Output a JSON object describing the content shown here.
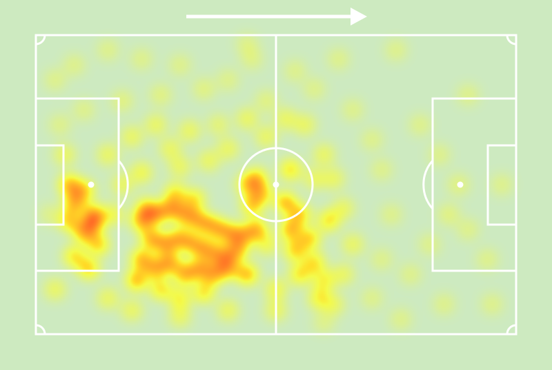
{
  "chart_data": {
    "type": "heatmap",
    "title": "",
    "xlabel": "",
    "ylabel": "",
    "xlim": [
      0,
      100
    ],
    "ylim": [
      0,
      100
    ],
    "grid": false,
    "attack_direction": "left-to-right",
    "colors": {
      "background": "#cdeac0",
      "lines": "#ffffff",
      "low": "#ffff30",
      "high": "#ff2020"
    },
    "points": [
      [
        22,
        62,
        1
      ],
      [
        25,
        60,
        1
      ],
      [
        28,
        58,
        1
      ],
      [
        31,
        60,
        1
      ],
      [
        34,
        62,
        1
      ],
      [
        37,
        64,
        1
      ],
      [
        40,
        66,
        1
      ],
      [
        43,
        67,
        1
      ],
      [
        46,
        65,
        1
      ],
      [
        24,
        68,
        1
      ],
      [
        27,
        70,
        1
      ],
      [
        30,
        68,
        1
      ],
      [
        33,
        70,
        1
      ],
      [
        36,
        72,
        1
      ],
      [
        39,
        74,
        1
      ],
      [
        42,
        72,
        1
      ],
      [
        22,
        75,
        1
      ],
      [
        25,
        78,
        1
      ],
      [
        28,
        76,
        1
      ],
      [
        31,
        80,
        1
      ],
      [
        34,
        78,
        1
      ],
      [
        37,
        80,
        1
      ],
      [
        40,
        78,
        1
      ],
      [
        44,
        80,
        1
      ],
      [
        21,
        82,
        1
      ],
      [
        26,
        85,
        0.8
      ],
      [
        30,
        88,
        0.7
      ],
      [
        35,
        86,
        0.8
      ],
      [
        23,
        58,
        0.9
      ],
      [
        29,
        53,
        0.8
      ],
      [
        33,
        55,
        0.8
      ],
      [
        45,
        57,
        0.9
      ],
      [
        47,
        53,
        0.9
      ],
      [
        7,
        50,
        1
      ],
      [
        10,
        52,
        0.9
      ],
      [
        8,
        56,
        1
      ],
      [
        12,
        60,
        1
      ],
      [
        7,
        62,
        0.9
      ],
      [
        10,
        66,
        1
      ],
      [
        13,
        70,
        0.9
      ],
      [
        8,
        74,
        0.8
      ],
      [
        11,
        78,
        0.9
      ],
      [
        12,
        63,
        1
      ],
      [
        52,
        56,
        1
      ],
      [
        55,
        60,
        0.9
      ],
      [
        53,
        65,
        1
      ],
      [
        57,
        68,
        0.9
      ],
      [
        54,
        72,
        0.9
      ],
      [
        58,
        76,
        0.8
      ],
      [
        55,
        80,
        0.8
      ],
      [
        60,
        82,
        0.7
      ],
      [
        61,
        62,
        0.8
      ],
      [
        59,
        88,
        0.7
      ],
      [
        46,
        48,
        0.9
      ],
      [
        44,
        50,
        0.8
      ],
      [
        53,
        45,
        0.8
      ],
      [
        30,
        44,
        0.5
      ],
      [
        36,
        42,
        0.5
      ],
      [
        40,
        38,
        0.5
      ],
      [
        28,
        38,
        0.5
      ],
      [
        22,
        46,
        0.6
      ],
      [
        18,
        50,
        0.5
      ],
      [
        15,
        40,
        0.5
      ],
      [
        20,
        34,
        0.5
      ],
      [
        25,
        30,
        0.5
      ],
      [
        32,
        32,
        0.5
      ],
      [
        38,
        30,
        0.4
      ],
      [
        44,
        28,
        0.5
      ],
      [
        48,
        34,
        0.5
      ],
      [
        52,
        28,
        0.5
      ],
      [
        56,
        30,
        0.5
      ],
      [
        60,
        40,
        0.5
      ],
      [
        62,
        48,
        0.5
      ],
      [
        58,
        48,
        0.5
      ],
      [
        64,
        58,
        0.5
      ],
      [
        66,
        70,
        0.5
      ],
      [
        64,
        80,
        0.5
      ],
      [
        50,
        92,
        0.5
      ],
      [
        40,
        92,
        0.5
      ],
      [
        30,
        94,
        0.5
      ],
      [
        20,
        92,
        0.5
      ],
      [
        15,
        88,
        0.5
      ],
      [
        6,
        40,
        0.5
      ],
      [
        4,
        85,
        0.5
      ],
      [
        16,
        60,
        0.6
      ],
      [
        48,
        70,
        0.6
      ],
      [
        62,
        90,
        0.5
      ],
      [
        50,
        85,
        0.6
      ],
      [
        8,
        10,
        0.3
      ],
      [
        15,
        5,
        0.3
      ],
      [
        22,
        8,
        0.3
      ],
      [
        30,
        10,
        0.3
      ],
      [
        35,
        18,
        0.35
      ],
      [
        26,
        20,
        0.35
      ],
      [
        18,
        22,
        0.35
      ],
      [
        10,
        25,
        0.3
      ],
      [
        40,
        15,
        0.3
      ],
      [
        45,
        8,
        0.3
      ],
      [
        48,
        22,
        0.35
      ],
      [
        54,
        12,
        0.3
      ],
      [
        58,
        18,
        0.3
      ],
      [
        63,
        8,
        0.3
      ],
      [
        66,
        25,
        0.3
      ],
      [
        70,
        35,
        0.3
      ],
      [
        72,
        45,
        0.3
      ],
      [
        74,
        60,
        0.3
      ],
      [
        72,
        75,
        0.3
      ],
      [
        70,
        88,
        0.3
      ],
      [
        78,
        80,
        0.3
      ],
      [
        82,
        70,
        0.3
      ],
      [
        86,
        60,
        0.35
      ],
      [
        88,
        50,
        0.35
      ],
      [
        84,
        40,
        0.3
      ],
      [
        80,
        30,
        0.3
      ],
      [
        90,
        65,
        0.3
      ],
      [
        94,
        75,
        0.3
      ],
      [
        95,
        90,
        0.3
      ],
      [
        85,
        90,
        0.3
      ],
      [
        76,
        95,
        0.3
      ],
      [
        60,
        96,
        0.3
      ],
      [
        4,
        15,
        0.3
      ],
      [
        5,
        30,
        0.3
      ],
      [
        3,
        60,
        0.3
      ],
      [
        44,
        3,
        0.3
      ],
      [
        75,
        5,
        0.3
      ],
      [
        90,
        20,
        0.3
      ],
      [
        97,
        50,
        0.3
      ]
    ]
  }
}
